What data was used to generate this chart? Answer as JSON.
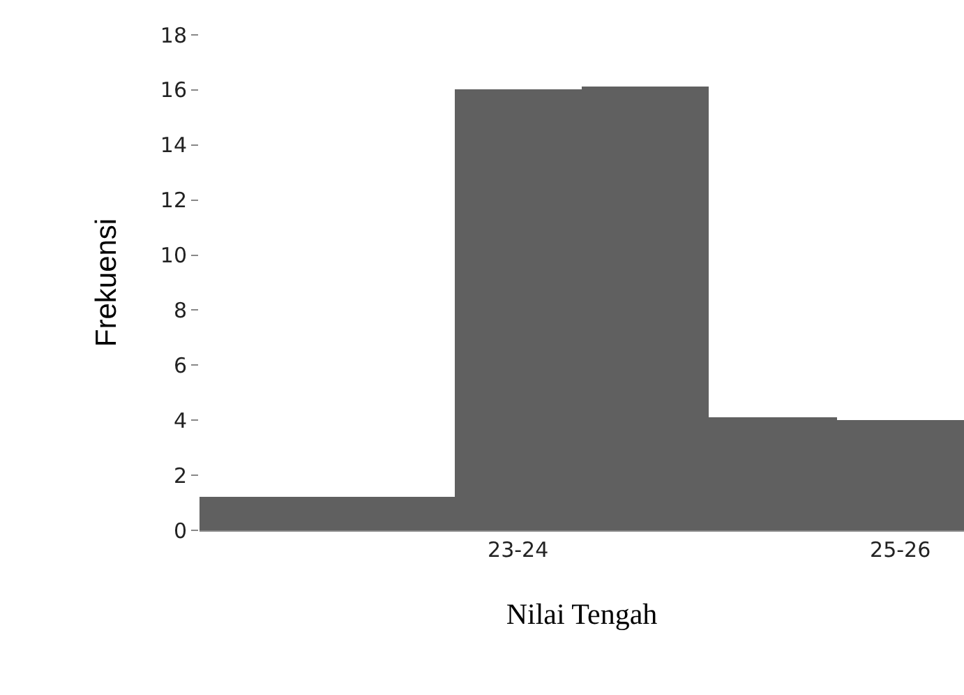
{
  "chart_data": {
    "type": "bar",
    "xlabel": "Nilai Tengah",
    "ylabel": "Frekuensi",
    "categories": [
      null,
      null,
      "23-24",
      null,
      null,
      "25-26"
    ],
    "values": [
      1.2,
      1.2,
      16,
      16.1,
      4.1,
      4
    ],
    "color": "#606060",
    "ylim": [
      0,
      18
    ],
    "yticks": [
      0,
      2,
      4,
      6,
      8,
      10,
      12,
      14,
      16,
      18
    ]
  }
}
